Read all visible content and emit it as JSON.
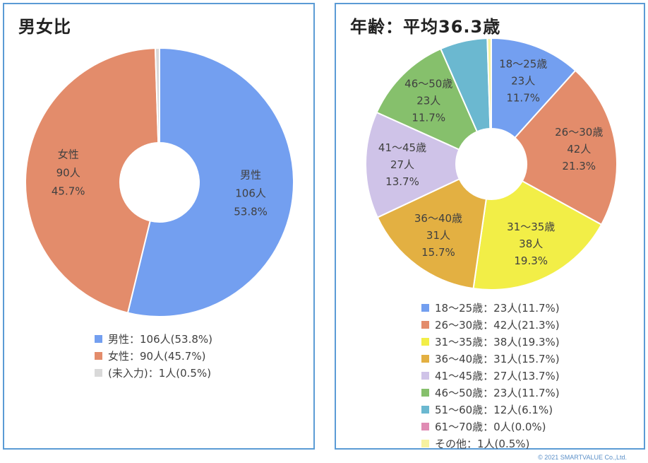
{
  "copyright": "© 2021 SMARTVALUE Co.,Ltd.",
  "chart_data": [
    {
      "type": "pie",
      "title": "男女比",
      "slices": [
        {
          "name": "男性",
          "count": 106,
          "percent": 53.8,
          "value_text": "106人",
          "percent_text": "53.8%",
          "legend": "男性：106人(53.8%)",
          "color": "#739ff0",
          "show_label": true
        },
        {
          "name": "女性",
          "count": 90,
          "percent": 45.7,
          "value_text": "90人",
          "percent_text": "45.7%",
          "legend": "女性：90人(45.7%)",
          "color": "#e38c6b",
          "show_label": true
        },
        {
          "name": "(未入力)",
          "count": 1,
          "percent": 0.5,
          "value_text": "1人",
          "percent_text": "0.5%",
          "legend": "(未入力)：1人(0.5%)",
          "color": "#d9d9d9",
          "show_label": false
        }
      ]
    },
    {
      "type": "pie",
      "title": "年齢：平均36.3歳",
      "slices": [
        {
          "name": "18～25歳",
          "count": 23,
          "percent": 11.7,
          "value_text": "23人",
          "percent_text": "11.7%",
          "legend": "18～25歳：23人(11.7%)",
          "color": "#739ff0",
          "show_label": true
        },
        {
          "name": "26～30歳",
          "count": 42,
          "percent": 21.3,
          "value_text": "42人",
          "percent_text": "21.3%",
          "legend": "26～30歳：42人(21.3%)",
          "color": "#e38c6b",
          "show_label": true
        },
        {
          "name": "31～35歳",
          "count": 38,
          "percent": 19.3,
          "value_text": "38人",
          "percent_text": "19.3%",
          "legend": "31～35歳：38人(19.3%)",
          "color": "#f2ee47",
          "show_label": true
        },
        {
          "name": "36～40歳",
          "count": 31,
          "percent": 15.7,
          "value_text": "31人",
          "percent_text": "15.7%",
          "legend": "36～40歳：31人(15.7%)",
          "color": "#e3b042",
          "show_label": true
        },
        {
          "name": "41～45歳",
          "count": 27,
          "percent": 13.7,
          "value_text": "27人",
          "percent_text": "13.7%",
          "legend": "41～45歳：27人(13.7%)",
          "color": "#cfc3e8",
          "show_label": true
        },
        {
          "name": "46～50歳",
          "count": 23,
          "percent": 11.7,
          "value_text": "23人",
          "percent_text": "11.7%",
          "legend": "46～50歳：23人(11.7%)",
          "color": "#86c06c",
          "show_label": true
        },
        {
          "name": "51～60歳",
          "count": 12,
          "percent": 6.1,
          "value_text": "12人",
          "percent_text": "6.1%",
          "legend": "51～60歳：12人(6.1%)",
          "color": "#6bb8d0",
          "show_label": false
        },
        {
          "name": "61～70歳",
          "count": 0,
          "percent": 0.0,
          "value_text": "0人",
          "percent_text": "0.0%",
          "legend": "61～70歳：0人(0.0%)",
          "color": "#e08cb4",
          "show_label": false
        },
        {
          "name": "その他",
          "count": 1,
          "percent": 0.5,
          "value_text": "1人",
          "percent_text": "0.5%",
          "legend": "その他：1人(0.5%)",
          "color": "#f6f2a0",
          "show_label": false
        }
      ]
    }
  ]
}
